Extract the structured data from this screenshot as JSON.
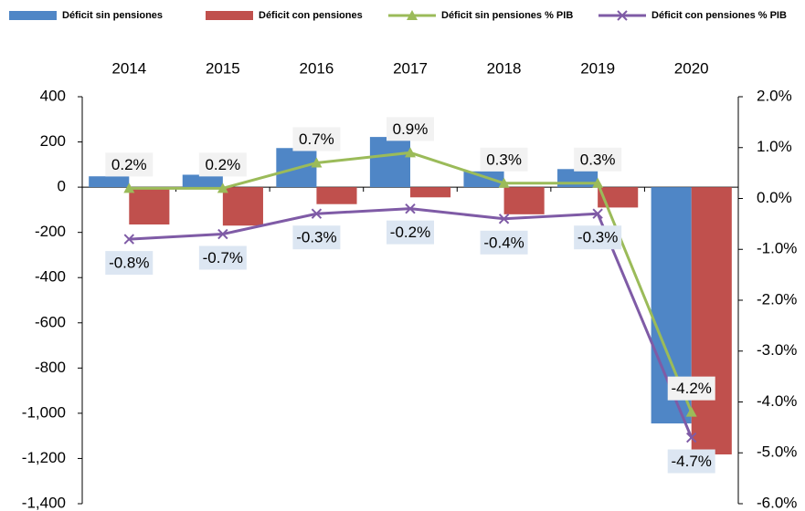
{
  "chart_data": {
    "type": "bar-line",
    "categories": [
      "2014",
      "2015",
      "2016",
      "2017",
      "2018",
      "2019",
      "2020"
    ],
    "series": [
      {
        "name": "Déficit  sin pensiones",
        "color": "#4f86c6",
        "kind": "bar",
        "values": [
          48,
          55,
          173,
          222,
          70,
          80,
          -1045
        ]
      },
      {
        "name": "Déficit  con pensiones",
        "color": "#c0504d",
        "kind": "bar",
        "values": [
          -165,
          -170,
          -75,
          -45,
          -120,
          -90,
          -1182
        ]
      },
      {
        "name": "Déficit  sin pensiones % PIB",
        "color": "#9bbb59",
        "kind": "line",
        "marker": "triangle",
        "axis": "y2",
        "values": [
          0.2,
          0.2,
          0.7,
          0.9,
          0.3,
          0.3,
          -4.2
        ],
        "value_labels": [
          "0.2%",
          "0.2%",
          "0.7%",
          "0.9%",
          "0.3%",
          "0.3%",
          "-4.2%"
        ]
      },
      {
        "name": "Déficit  con pensiones % PIB",
        "color": "#7f5ba6",
        "kind": "line",
        "marker": "x",
        "axis": "y2",
        "values": [
          -0.8,
          -0.7,
          -0.3,
          -0.2,
          -0.4,
          -0.3,
          -4.7
        ],
        "value_labels": [
          "-0.8%",
          "-0.7%",
          "-0.3%",
          "-0.2%",
          "-0.4%",
          "-0.3%",
          "-4.7%"
        ]
      }
    ],
    "ylim": [
      -1400,
      400
    ],
    "yticks": [
      400,
      200,
      0,
      -200,
      -400,
      -600,
      -800,
      {
        "value": -1000,
        "label": "-1,000"
      },
      {
        "value": -1200,
        "label": "-1,200"
      },
      {
        "value": -1400,
        "label": "-1,400"
      }
    ],
    "y2lim": [
      -6,
      2
    ],
    "y2ticks": [
      {
        "value": 2,
        "label": "2.0%"
      },
      {
        "value": 1,
        "label": "1.0%"
      },
      {
        "value": 0,
        "label": "0.0%"
      },
      {
        "value": -1,
        "label": "-1.0%"
      },
      {
        "value": -2,
        "label": "-2.0%"
      },
      {
        "value": -3,
        "label": "-3.0%"
      },
      {
        "value": -4,
        "label": "-4.0%"
      },
      {
        "value": -5,
        "label": "-5.0%"
      },
      {
        "value": -6,
        "label": "-6.0%"
      }
    ],
    "legend": "top"
  }
}
